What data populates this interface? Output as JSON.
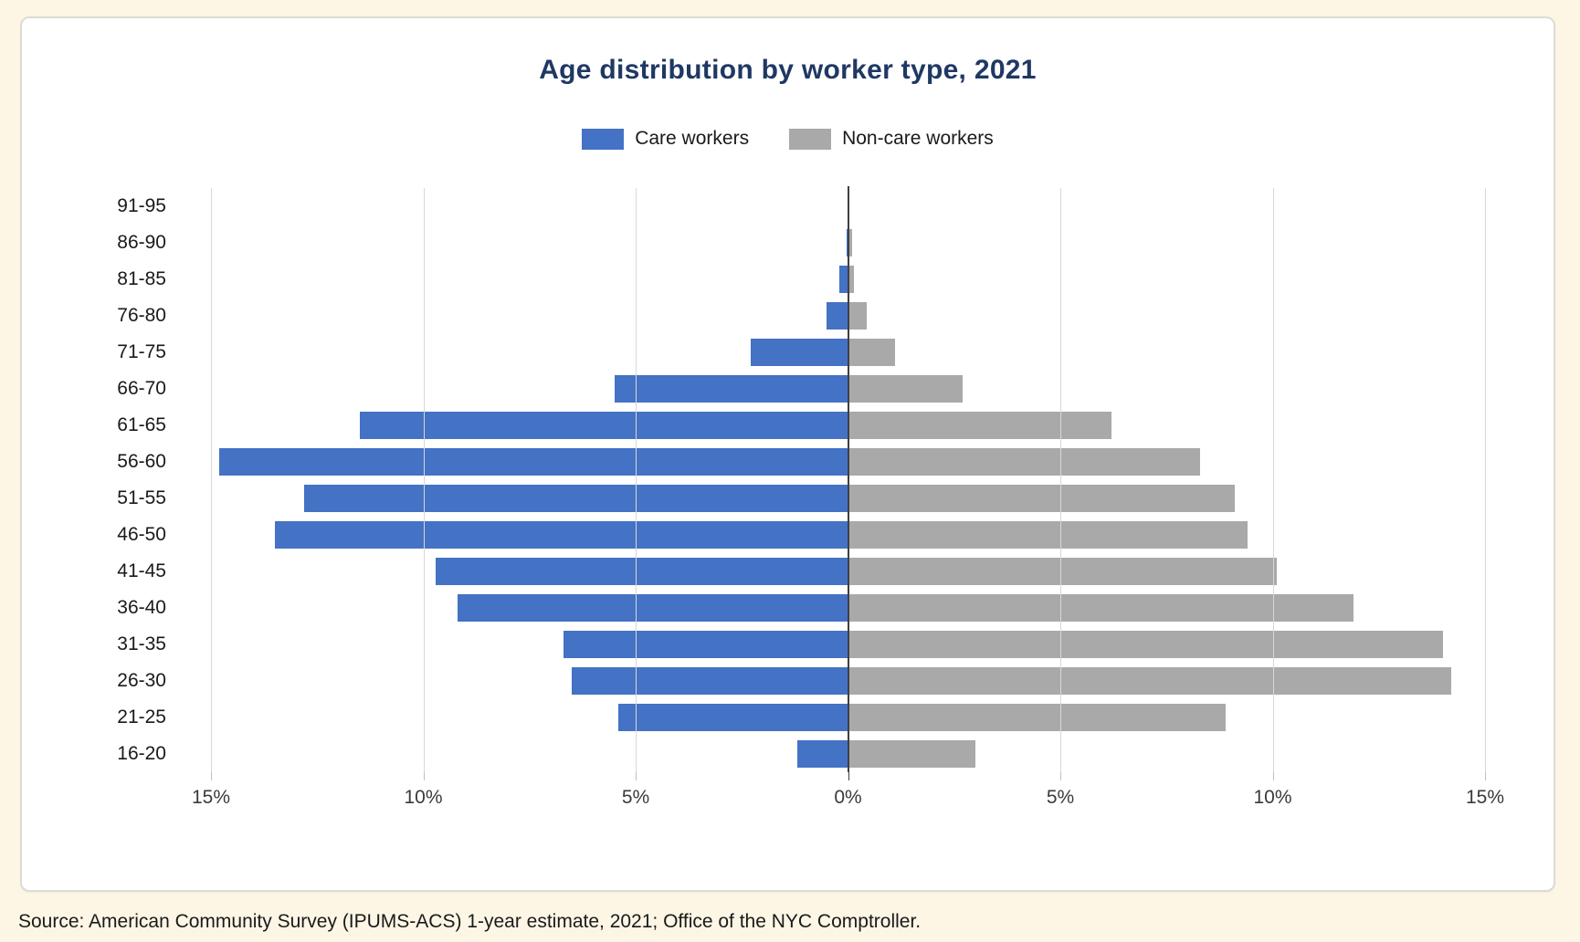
{
  "page": {
    "background_color": "#FDF6E5",
    "source_note": "Source: American Community Survey (IPUMS-ACS) 1-year estimate, 2021; Office of the NYC Comptroller."
  },
  "card": {
    "title": "Age distribution by worker type, 2021",
    "title_color": "#1F3864"
  },
  "legend": {
    "items": [
      {
        "label": "Care workers",
        "color": "#4472C4"
      },
      {
        "label": "Non-care workers",
        "color": "#A9A9A9"
      }
    ]
  },
  "chart_data": {
    "type": "bar",
    "subtype": "population-pyramid",
    "title": "Age distribution by worker type, 2021",
    "categories_top_to_bottom": [
      "91-95",
      "86-90",
      "81-85",
      "76-80",
      "71-75",
      "66-70",
      "61-65",
      "56-60",
      "51-55",
      "46-50",
      "41-45",
      "36-40",
      "31-35",
      "26-30",
      "21-25",
      "16-20"
    ],
    "series": [
      {
        "name": "Care workers",
        "side": "left",
        "color": "#4472C4",
        "values": [
          0,
          0.03,
          0.2,
          0.5,
          2.3,
          5.5,
          11.5,
          14.8,
          12.8,
          13.5,
          9.7,
          9.2,
          6.7,
          6.5,
          5.4,
          1.2
        ]
      },
      {
        "name": "Non-care workers",
        "side": "right",
        "color": "#A9A9A9",
        "values": [
          0,
          0.1,
          0.15,
          0.45,
          1.1,
          2.7,
          6.2,
          8.3,
          9.1,
          9.4,
          10.1,
          11.9,
          14.0,
          14.2,
          8.9,
          3.0
        ]
      }
    ],
    "x_axis": {
      "unit": "percent",
      "tick_labels": [
        "15%",
        "10%",
        "5%",
        "0%",
        "5%",
        "10%",
        "15%"
      ],
      "tick_values": [
        -15,
        -10,
        -5,
        0,
        5,
        10,
        15
      ],
      "max_percent_each_side": 15
    },
    "grid": true,
    "gridline_color": "#D8D8D8",
    "center_axis_color": "#404040",
    "legend_position": "top"
  }
}
